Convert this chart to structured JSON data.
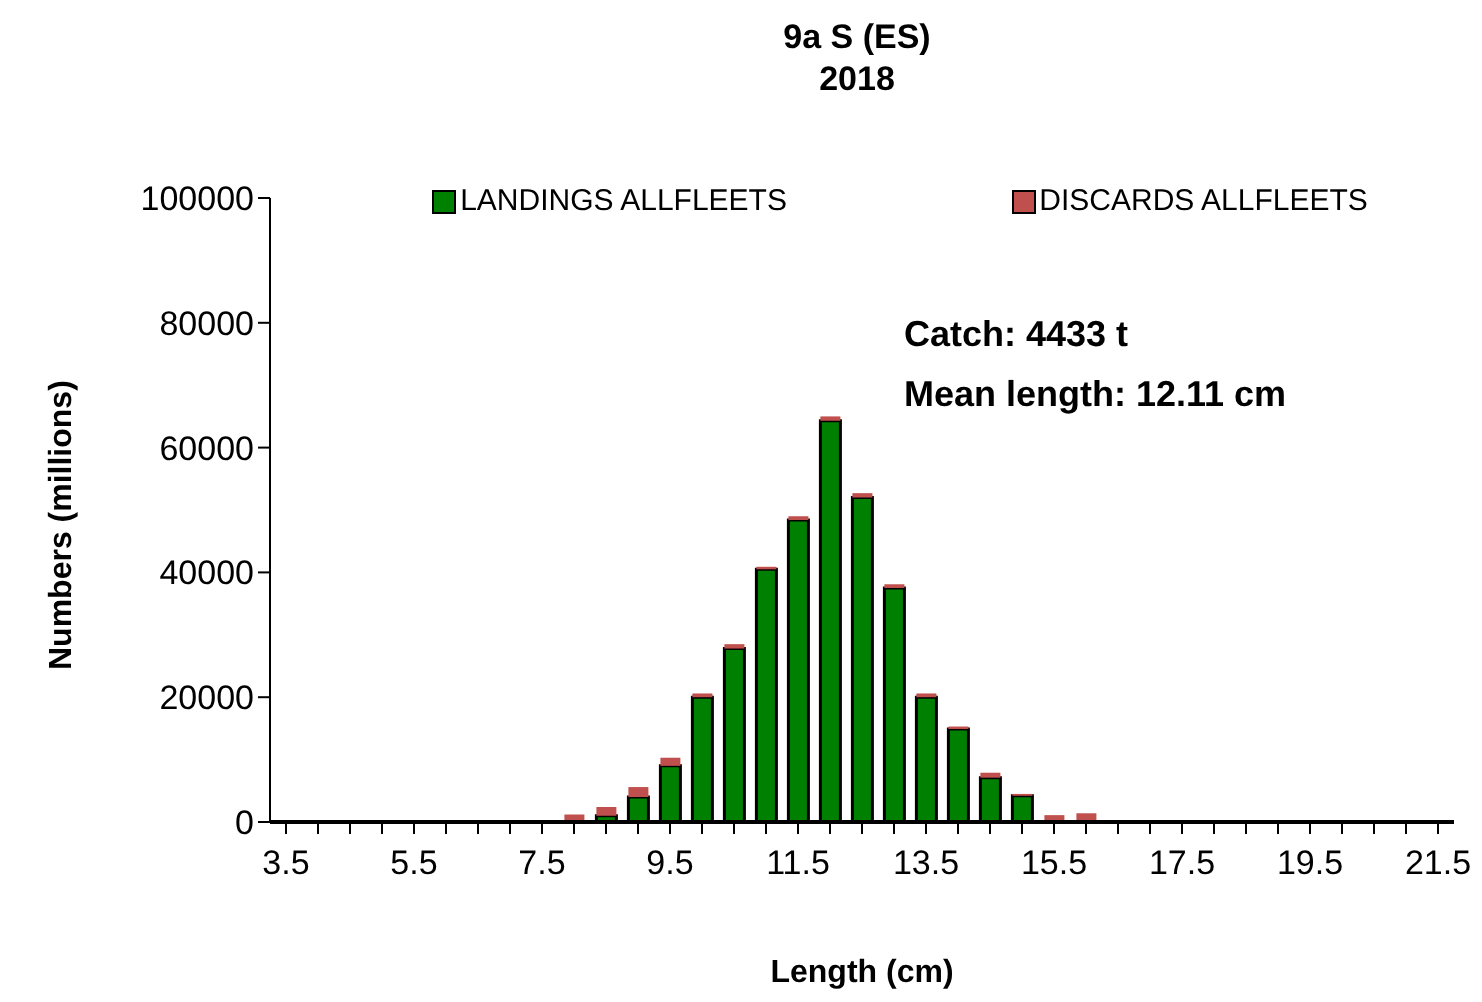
{
  "chart_data": {
    "type": "bar",
    "title": "9a S (ES)",
    "subtitle": "2018",
    "xlabel": "Length (cm)",
    "ylabel": "Numbers (millions)",
    "categories": [
      "3.5",
      null,
      null,
      null,
      "5.5",
      null,
      null,
      null,
      "7.5",
      null,
      null,
      null,
      "9.5",
      null,
      null,
      null,
      "11.5",
      null,
      null,
      null,
      "13.5",
      null,
      null,
      null,
      "15.5",
      null,
      null,
      null,
      "17.5",
      null,
      null,
      null,
      "19.5",
      null,
      null,
      null,
      "21.5"
    ],
    "stacked": true,
    "series": [
      {
        "name": "LANDINGS ALLFLEETS",
        "color": "#008000",
        "values": [
          0,
          0,
          0,
          0,
          0,
          0,
          0,
          0,
          0,
          0,
          1000,
          4000,
          9000,
          20000,
          27800,
          40500,
          48400,
          64300,
          52000,
          37500,
          20000,
          14900,
          7100,
          4200,
          null,
          0,
          0,
          0,
          0,
          0,
          0,
          0,
          0,
          0,
          0,
          0,
          0
        ]
      },
      {
        "name": "DISCARDS ALLFLEETS",
        "color": "#c0504d",
        "values": [
          0,
          0,
          0,
          0,
          0,
          0,
          0,
          0,
          0,
          1200,
          1400,
          1600,
          1300,
          600,
          700,
          400,
          600,
          700,
          700,
          600,
          600,
          400,
          800,
          300,
          1100,
          1400,
          0,
          0,
          0,
          0,
          0,
          0,
          0,
          0,
          0,
          0,
          0
        ]
      }
    ],
    "ylim": [
      0,
      100000
    ],
    "yticks": [
      0,
      20000,
      40000,
      60000,
      80000,
      100000
    ],
    "legend": "top",
    "annotations": [
      "Catch: 4433 t",
      "Mean length: 12.11 cm"
    ]
  }
}
